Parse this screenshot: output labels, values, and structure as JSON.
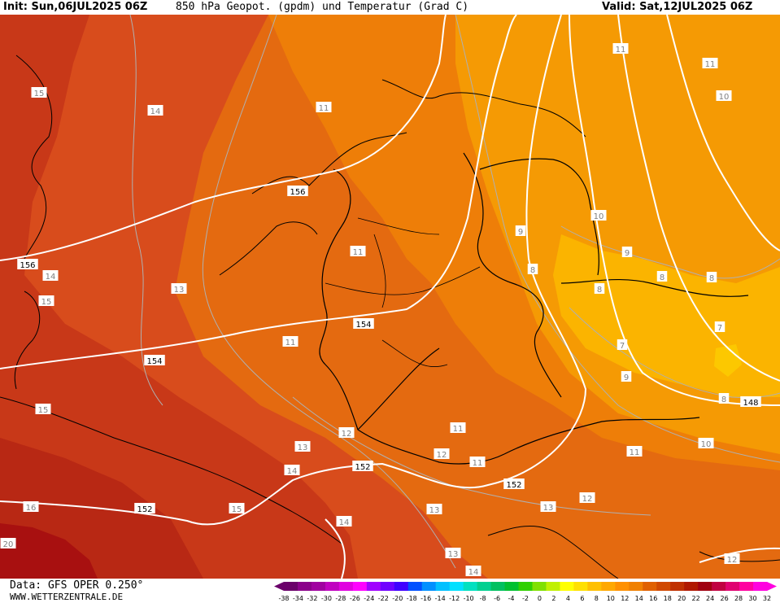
{
  "header": {
    "init": "Init: Sun,06JUL2025 06Z",
    "title": "850 hPa Geopot. (gpdm) und Temperatur (Grad C)",
    "valid": "Valid: Sat,12JUL2025 06Z"
  },
  "footer": {
    "source": "Data: GFS OPER 0.250°",
    "website": "WWW.WETTERZENTRALE.DE"
  },
  "legend": {
    "values": [
      "-38",
      "-34",
      "-32",
      "-30",
      "-28",
      "-26",
      "-24",
      "-22",
      "-20",
      "-18",
      "-16",
      "-14",
      "-12",
      "-10",
      "-8",
      "-6",
      "-4",
      "-2",
      "0",
      "2",
      "4",
      "6",
      "8",
      "10",
      "12",
      "14",
      "16",
      "18",
      "20",
      "22",
      "24",
      "26",
      "28",
      "30",
      "32"
    ],
    "colors": [
      "#6a006a",
      "#8a008a",
      "#a000a0",
      "#c000c0",
      "#e000e0",
      "#ff00ff",
      "#a000ff",
      "#7000ff",
      "#4000ff",
      "#0050ff",
      "#0090ff",
      "#00c0ff",
      "#00e0ff",
      "#00e0c0",
      "#00d090",
      "#00c060",
      "#00c030",
      "#30d000",
      "#80e000",
      "#c0f000",
      "#ffff00",
      "#ffe000",
      "#ffc000",
      "#ffa800",
      "#ff9000",
      "#f08000",
      "#e06000",
      "#d04800",
      "#c03000",
      "#b01800",
      "#a00010",
      "#c00040",
      "#e00070",
      "#ff00a0",
      "#ff00e0"
    ]
  },
  "colors": {
    "warm_13_14": "#d84c1c",
    "warm_15_plus": "#c83818",
    "warm_20_plus": "#a81010",
    "warm_11_12": "#e46a10",
    "warm_10_11": "#ee7e08",
    "warm_8_10": "#f59a04",
    "warm_6_8": "#fbb400",
    "geopotential_line": "#ffffff",
    "isotherm_line": "#b0b0b0",
    "coastline": "#000000"
  },
  "map": {
    "geopotential_labels": [
      {
        "id": "gp-156-a",
        "text": "156"
      },
      {
        "id": "gp-156-b",
        "text": "156"
      },
      {
        "id": "gp-154-a",
        "text": "154"
      },
      {
        "id": "gp-154-b",
        "text": "154"
      },
      {
        "id": "gp-152-a",
        "text": "152"
      },
      {
        "id": "gp-152-b",
        "text": "152"
      },
      {
        "id": "gp-152-c",
        "text": "152"
      },
      {
        "id": "gp-148",
        "text": "148"
      }
    ],
    "temperature_labels": [
      {
        "id": "t-15-a",
        "text": "15"
      },
      {
        "id": "t-14-a",
        "text": "14"
      },
      {
        "id": "t-11-a",
        "text": "11"
      },
      {
        "id": "t-11-b",
        "text": "11"
      },
      {
        "id": "t-11-c",
        "text": "11"
      },
      {
        "id": "t-10-a",
        "text": "10"
      },
      {
        "id": "t-14-b",
        "text": "14"
      },
      {
        "id": "t-15-b",
        "text": "15"
      },
      {
        "id": "t-13-a",
        "text": "13"
      },
      {
        "id": "t-11-d",
        "text": "11"
      },
      {
        "id": "t-9-a",
        "text": "9"
      },
      {
        "id": "t-8-a",
        "text": "8"
      },
      {
        "id": "t-10-b",
        "text": "10"
      },
      {
        "id": "t-9-b",
        "text": "9"
      },
      {
        "id": "t-8-b",
        "text": "8"
      },
      {
        "id": "t-8-c",
        "text": "8"
      },
      {
        "id": "t-8-d",
        "text": "8"
      },
      {
        "id": "t-7-a",
        "text": "7"
      },
      {
        "id": "t-7-b",
        "text": "7"
      },
      {
        "id": "t-11-e",
        "text": "11"
      },
      {
        "id": "t-9-c",
        "text": "9"
      },
      {
        "id": "t-8-e",
        "text": "8"
      },
      {
        "id": "t-15-c",
        "text": "15"
      },
      {
        "id": "t-11-f",
        "text": "11"
      },
      {
        "id": "t-12-a",
        "text": "12"
      },
      {
        "id": "t-13-b",
        "text": "13"
      },
      {
        "id": "t-12-b",
        "text": "12"
      },
      {
        "id": "t-11-g",
        "text": "11"
      },
      {
        "id": "t-10-c",
        "text": "10"
      },
      {
        "id": "t-14-c",
        "text": "14"
      },
      {
        "id": "t-11-h",
        "text": "11"
      },
      {
        "id": "t-16",
        "text": "16"
      },
      {
        "id": "t-15-d",
        "text": "15"
      },
      {
        "id": "t-12-c",
        "text": "12"
      },
      {
        "id": "t-13-c",
        "text": "13"
      },
      {
        "id": "t-13-d",
        "text": "13"
      },
      {
        "id": "t-14-d",
        "text": "14"
      },
      {
        "id": "t-20",
        "text": "20"
      },
      {
        "id": "t-13-e",
        "text": "13"
      },
      {
        "id": "t-14-e",
        "text": "14"
      },
      {
        "id": "t-12-d",
        "text": "12"
      }
    ]
  }
}
